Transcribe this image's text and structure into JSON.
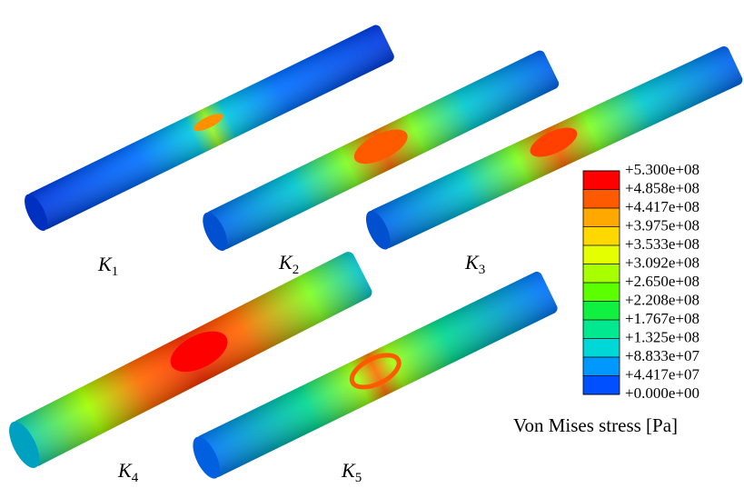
{
  "panels": [
    {
      "letter": "K",
      "subscript": "1"
    },
    {
      "letter": "K",
      "subscript": "2"
    },
    {
      "letter": "K",
      "subscript": "3"
    },
    {
      "letter": "K",
      "subscript": "4"
    },
    {
      "letter": "K",
      "subscript": "5"
    }
  ],
  "legend": {
    "title": "Von Mises stress [Pa]",
    "levels": [
      "+5.300e+08",
      "+4.858e+08",
      "+4.417e+08",
      "+3.975e+08",
      "+3.533e+08",
      "+3.092e+08",
      "+2.650e+08",
      "+2.208e+08",
      "+1.767e+08",
      "+1.325e+08",
      "+8.833e+07",
      "+4.417e+07",
      "+0.000e+00"
    ],
    "colors": [
      "#ff0000",
      "#ff5a00",
      "#ffa800",
      "#ffd800",
      "#e4ff00",
      "#a8ff00",
      "#5cff00",
      "#10f040",
      "#00e890",
      "#00d8d8",
      "#0098ff",
      "#0050ff",
      "#0020e0"
    ]
  }
}
